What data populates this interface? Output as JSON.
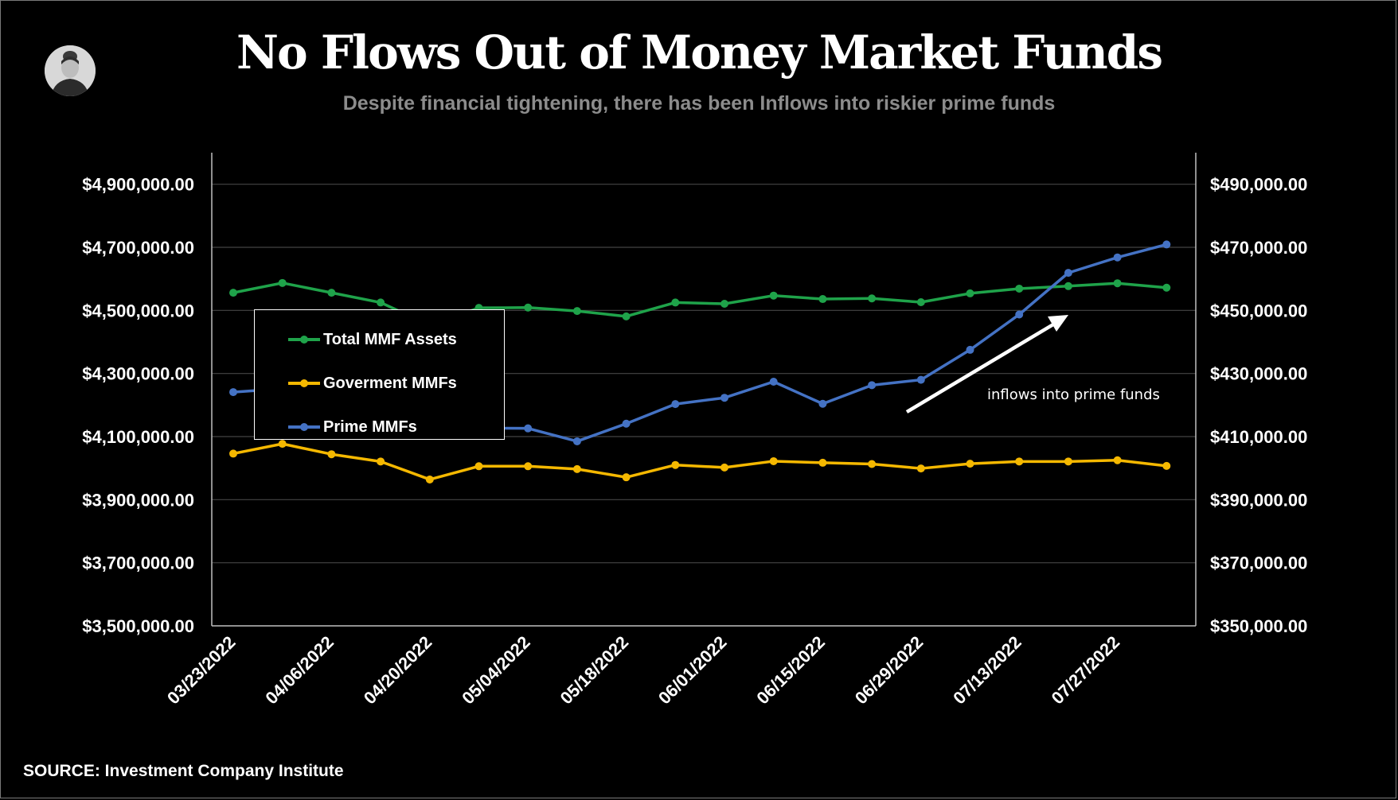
{
  "title": "No Flows Out of Money Market Funds",
  "subtitle": "Despite financial tightening, there has been Inflows into riskier prime funds",
  "source": "SOURCE: Investment Company Institute",
  "annotation": "inflows into prime funds",
  "colors": {
    "background": "#000000",
    "total": "#1fa34a",
    "government": "#f5b800",
    "prime": "#4472c4",
    "gridline": "#444444",
    "subtitle": "#8c8c8c"
  },
  "chart_data": {
    "type": "line",
    "title": "No Flows Out of Money Market Funds",
    "subtitle": "Despite financial tightening, there has been Inflows into riskier prime funds",
    "x": [
      "03/23/2022",
      "03/30/2022",
      "04/06/2022",
      "04/13/2022",
      "04/20/2022",
      "04/27/2022",
      "05/04/2022",
      "05/11/2022",
      "05/18/2022",
      "05/25/2022",
      "06/01/2022",
      "06/08/2022",
      "06/15/2022",
      "06/22/2022",
      "06/29/2022",
      "07/06/2022",
      "07/13/2022",
      "07/20/2022",
      "07/27/2022",
      "08/03/2022"
    ],
    "x_tick_labels": [
      "03/23/2022",
      "04/06/2022",
      "04/20/2022",
      "05/04/2022",
      "05/18/2022",
      "06/01/2022",
      "06/15/2022",
      "06/29/2022",
      "07/13/2022",
      "07/27/2022"
    ],
    "x_tick_indices": [
      0,
      2,
      4,
      6,
      8,
      10,
      12,
      14,
      16,
      18
    ],
    "y_left": {
      "ylim": [
        3500000,
        5000000
      ],
      "ticks": [
        3500000,
        3700000,
        3900000,
        4100000,
        4300000,
        4500000,
        4700000,
        4900000
      ],
      "tick_labels": [
        "$3,500,000.00",
        "$3,700,000.00",
        "$3,900,000.00",
        "$4,100,000.00",
        "$4,300,000.00",
        "$4,500,000.00",
        "$4,700,000.00",
        "$4,900,000.00"
      ]
    },
    "y_right": {
      "ylim": [
        350000,
        500000
      ],
      "ticks": [
        350000,
        370000,
        390000,
        410000,
        430000,
        450000,
        470000,
        490000
      ],
      "tick_labels": [
        "$350,000.00",
        "$370,000.00",
        "$390,000.00",
        "$410,000.00",
        "$430,000.00",
        "$450,000.00",
        "$470,000.00",
        "$490,000.00"
      ]
    },
    "grid": true,
    "legend_position": "upper-left",
    "series": [
      {
        "name": "Total MMF Assets",
        "axis": "left",
        "color": "#1fa34a",
        "values": [
          4556000,
          4587000,
          4556000,
          4525000,
          4453000,
          4508000,
          4509000,
          4498000,
          4481000,
          4525000,
          4521000,
          4547000,
          4536000,
          4538000,
          4526000,
          4554000,
          4569000,
          4577000,
          4586000,
          4572000
        ]
      },
      {
        "name": "Goverment MMFs",
        "axis": "left",
        "color": "#f5b800",
        "values": [
          4046000,
          4077000,
          4044000,
          4021000,
          3964000,
          4006000,
          4006000,
          3997000,
          3971000,
          4010000,
          4002000,
          4022000,
          4017000,
          4013000,
          3999000,
          4014000,
          4021000,
          4021000,
          4025000,
          4007000
        ]
      },
      {
        "name": "Prime MMFs",
        "axis": "right",
        "color": "#4472c4",
        "values": [
          424100,
          425200,
          418500,
          415800,
          415800,
          412700,
          412600,
          408500,
          414100,
          420300,
          422300,
          427400,
          420400,
          426300,
          428000,
          437500,
          448700,
          461900,
          466800,
          470900
        ]
      }
    ]
  }
}
